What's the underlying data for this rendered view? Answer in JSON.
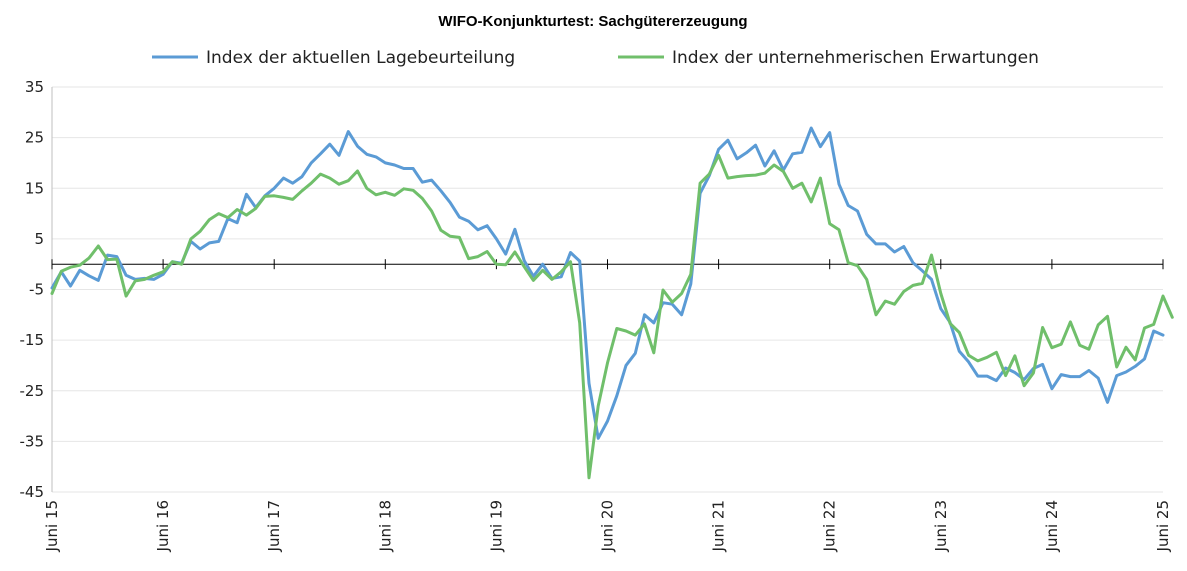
{
  "chart_data": {
    "type": "line",
    "title": "WIFO-Konjunkturtest: Sachgütererzeugung",
    "xlabel": "",
    "ylabel": "",
    "ylim": [
      -45,
      35
    ],
    "yticks": [
      35,
      25,
      15,
      5,
      -5,
      -15,
      -25,
      -35,
      -45
    ],
    "xticks": [
      "Juni 15",
      "Juni 16",
      "Juni 17",
      "Juni 18",
      "Juni 19",
      "Juni 20",
      "Juni 21",
      "Juni 22",
      "Juni 23",
      "Juni 24",
      "Juni 25"
    ],
    "grid": true,
    "legend": "top",
    "series": [
      {
        "name": "Index der aktuellen Lagebeurteilung",
        "color": "#5b9bd5",
        "values": [
          -4.7,
          -1.5,
          -4.3,
          -1.2,
          -2.3,
          -3.2,
          1.8,
          1.5,
          -2.2,
          -3.0,
          -2.8,
          -3.0,
          -2.0,
          0.5,
          0.2,
          4.5,
          3.0,
          4.2,
          4.5,
          9.0,
          8.2,
          13.8,
          11.2,
          13.5,
          15.0,
          17.0,
          16.0,
          17.3,
          20.0,
          21.8,
          23.7,
          21.5,
          26.2,
          23.3,
          21.7,
          21.2,
          20.0,
          19.6,
          18.9,
          18.9,
          16.2,
          16.6,
          14.5,
          12.2,
          9.3,
          8.5,
          6.8,
          7.6,
          5.0,
          2.0,
          6.9,
          0.7,
          -2.4,
          0.0,
          -2.8,
          -2.5,
          2.3,
          0.6,
          -23.5,
          -34.4,
          -31.0,
          -26.0,
          -20.0,
          -17.6,
          -10.0,
          -11.6,
          -7.6,
          -7.9,
          -10.0,
          -3.9,
          14.0,
          17.5,
          22.7,
          24.5,
          20.8,
          22.0,
          23.5,
          19.4,
          22.4,
          18.6,
          21.8,
          22.1,
          26.9,
          23.2,
          26.0,
          15.8,
          11.6,
          10.5,
          5.9,
          4.0,
          4.0,
          2.4,
          3.5,
          0.3,
          -1.3,
          -3.0,
          -8.8,
          -11.5,
          -17.2,
          -19.3,
          -22.1,
          -22.1,
          -23.0,
          -20.5,
          -21.4,
          -22.8,
          -20.6,
          -19.8,
          -24.6,
          -21.8,
          -22.2,
          -22.2,
          -21.0,
          -22.5,
          -27.3,
          -22.0,
          -21.3,
          -20.2,
          -18.7,
          -13.2,
          -14.0
        ]
      },
      {
        "name": "Index der unternehmerischen Erwartungen",
        "color": "#70bf6b",
        "values": [
          -5.8,
          -1.4,
          -0.6,
          -0.2,
          1.2,
          3.6,
          0.9,
          1.0,
          -6.3,
          -3.3,
          -3.0,
          -2.2,
          -1.5,
          0.5,
          0.0,
          5.0,
          6.5,
          8.8,
          10.0,
          9.2,
          10.8,
          9.7,
          11.0,
          13.4,
          13.5,
          13.2,
          12.8,
          14.5,
          16.0,
          17.8,
          17.0,
          15.8,
          16.5,
          18.4,
          15.0,
          13.7,
          14.2,
          13.6,
          14.9,
          14.6,
          13.0,
          10.5,
          6.7,
          5.5,
          5.3,
          1.1,
          1.5,
          2.5,
          0.0,
          -0.1,
          2.4,
          -0.5,
          -3.2,
          -1.2,
          -3.0,
          -1.5,
          0.5,
          -11.6,
          -42.2,
          -28.0,
          -19.5,
          -12.7,
          -13.2,
          -14.0,
          -11.8,
          -17.5,
          -5.1,
          -7.5,
          -5.8,
          -2.0,
          16.0,
          17.8,
          21.5,
          17.0,
          17.3,
          17.5,
          17.6,
          18.0,
          19.6,
          18.3,
          15.0,
          16.0,
          12.3,
          17.0,
          8.0,
          6.8,
          0.3,
          -0.3,
          -3.0,
          -10.0,
          -7.3,
          -7.9,
          -5.4,
          -4.2,
          -3.8,
          1.8,
          -5.8,
          -11.7,
          -13.5,
          -18.0,
          -19.1,
          -18.4,
          -17.4,
          -22.0,
          -18.1,
          -24.0,
          -21.5,
          -12.5,
          -16.5,
          -15.8,
          -11.4,
          -16.0,
          -16.8,
          -12.0,
          -10.3,
          -20.3,
          -16.4,
          -18.9,
          -12.6,
          -11.9,
          -6.3,
          -10.5
        ]
      }
    ]
  }
}
